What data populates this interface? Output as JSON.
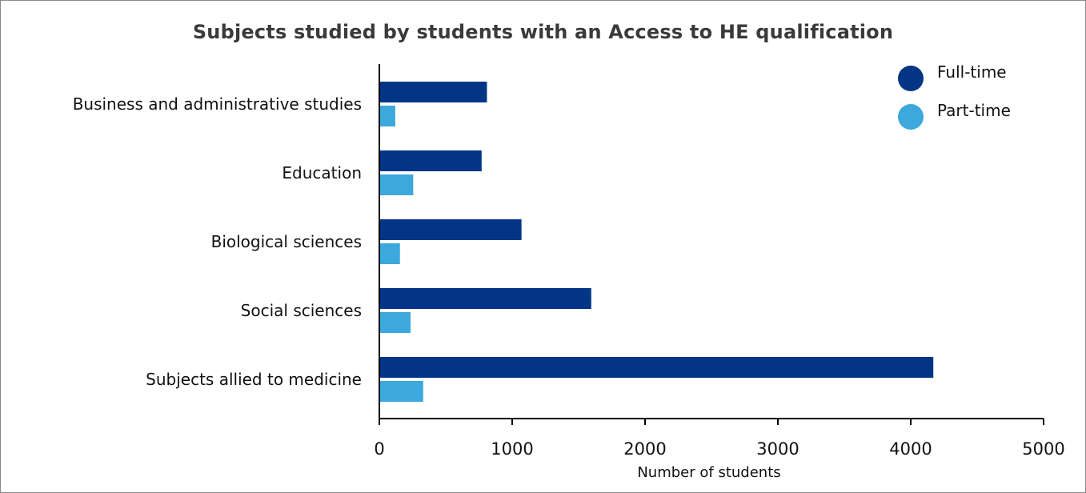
{
  "chart_data": {
    "type": "bar",
    "orientation": "horizontal",
    "title": "Subjects studied by students with an Access to HE qualification",
    "xlabel": "Number of students",
    "ylabel": "",
    "xlim": [
      0,
      5000
    ],
    "xticks": [
      0,
      1000,
      2000,
      3000,
      4000,
      5000
    ],
    "grid": false,
    "legend_position": "top-right",
    "categories": [
      "Business and administrative studies",
      "Education",
      "Biological sciences",
      "Social sciences",
      "Subjects allied to medicine"
    ],
    "series": [
      {
        "name": "Full-time",
        "color": "#023586",
        "values": [
          810,
          770,
          1070,
          1595,
          4170
        ]
      },
      {
        "name": "Part-time",
        "color": "#3ca8dc",
        "values": [
          120,
          255,
          155,
          235,
          330
        ]
      }
    ]
  }
}
